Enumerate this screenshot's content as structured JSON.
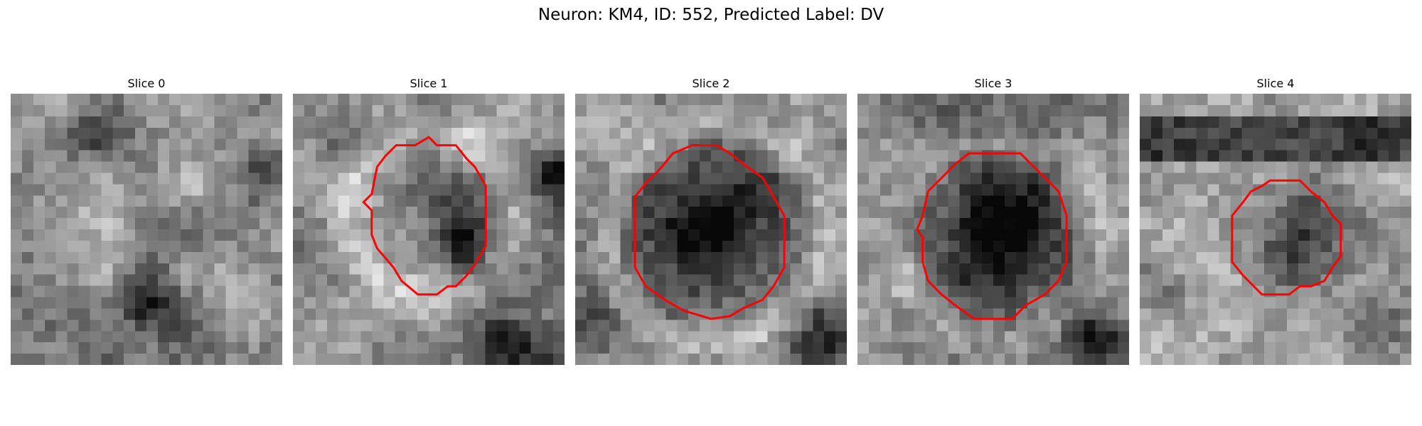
{
  "title": "Neuron: KM4, ID: 552, Predicted Label: DV",
  "panels": [
    {
      "label": "Slice 0",
      "has_contour": false
    },
    {
      "label": "Slice 1",
      "has_contour": true
    },
    {
      "label": "Slice 2",
      "has_contour": true
    },
    {
      "label": "Slice 3",
      "has_contour": true
    },
    {
      "label": "Slice 4",
      "has_contour": true
    }
  ],
  "colors": {
    "contour": "#ff0000",
    "colormap": "grayscale"
  }
}
